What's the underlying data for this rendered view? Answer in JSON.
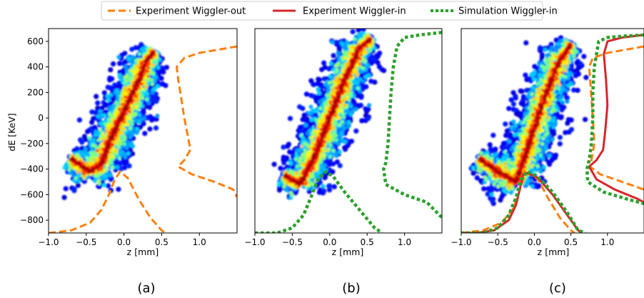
{
  "chart_data": {
    "type": "line",
    "legend": {
      "placement": "top-center",
      "entries": [
        {
          "label": "Experiment Wiggler-out",
          "color": "#ff7f0e",
          "style": "dashed"
        },
        {
          "label": "Experiment Wiggler-in",
          "color": "#d62728",
          "style": "solid"
        },
        {
          "label": "Simulation Wiggler-in",
          "color": "#2ca02c",
          "style": "dotted"
        }
      ]
    },
    "panels": [
      {
        "caption": "(a)",
        "xlabel": "z [mm]",
        "ylabel": "dE [KeV]",
        "xlim": [
          -1.0,
          1.5
        ],
        "ylim": [
          -900,
          700
        ],
        "xticks": [
          "−1.0",
          "−0.5",
          "0.0",
          "0.5",
          "1.0"
        ],
        "yticks": [
          "600",
          "400",
          "200",
          "0",
          "−200",
          "−400",
          "−600",
          "−800"
        ],
        "beam": {
          "colormap": "jet",
          "centerline": [
            [
              -0.7,
              -320
            ],
            [
              -0.45,
              -420
            ],
            [
              -0.3,
              -360
            ],
            [
              -0.2,
              -200
            ],
            [
              0.0,
              50
            ],
            [
              0.2,
              300
            ],
            [
              0.3,
              450
            ],
            [
              0.4,
              520
            ]
          ]
        },
        "series": [
          {
            "name": "Experiment Wiggler-out",
            "role": "current-profile",
            "points": [
              [
                -1.0,
                -900
              ],
              [
                -0.7,
                -880
              ],
              [
                -0.45,
                -820
              ],
              [
                -0.3,
                -720
              ],
              [
                -0.2,
                -600
              ],
              [
                -0.12,
                -480
              ],
              [
                -0.05,
                -420
              ],
              [
                0.05,
                -470
              ],
              [
                0.2,
                -640
              ],
              [
                0.35,
                -780
              ],
              [
                0.5,
                -880
              ],
              [
                0.55,
                -900
              ]
            ]
          },
          {
            "name": "Experiment Wiggler-out",
            "role": "energy-projection",
            "points": [
              [
                1.5,
                560
              ],
              [
                1.3,
                540
              ],
              [
                1.0,
                510
              ],
              [
                0.8,
                470
              ],
              [
                0.7,
                400
              ],
              [
                0.72,
                300
              ],
              [
                0.76,
                150
              ],
              [
                0.8,
                0
              ],
              [
                0.85,
                -150
              ],
              [
                0.88,
                -250
              ],
              [
                0.8,
                -330
              ],
              [
                0.72,
                -380
              ],
              [
                0.9,
                -440
              ],
              [
                1.2,
                -500
              ],
              [
                1.45,
                -560
              ],
              [
                1.5,
                -620
              ]
            ]
          }
        ]
      },
      {
        "caption": "(b)",
        "xlabel": "z [mm]",
        "xlim": [
          -1.0,
          1.5
        ],
        "ylim": [
          -900,
          700
        ],
        "xticks": [
          "−1.0",
          "−0.5",
          "0.0",
          "0.5",
          "1.0"
        ],
        "beam": {
          "colormap": "jet",
          "centerline": [
            [
              -0.6,
              -450
            ],
            [
              -0.4,
              -520
            ],
            [
              -0.2,
              -300
            ],
            [
              0.0,
              0
            ],
            [
              0.2,
              300
            ],
            [
              0.4,
              550
            ],
            [
              0.55,
              620
            ]
          ]
        },
        "series": [
          {
            "name": "Simulation Wiggler-in",
            "role": "current-profile",
            "points": [
              [
                -1.0,
                -900
              ],
              [
                -0.7,
                -900
              ],
              [
                -0.5,
                -860
              ],
              [
                -0.35,
                -760
              ],
              [
                -0.25,
                -620
              ],
              [
                -0.15,
                -470
              ],
              [
                -0.05,
                -420
              ],
              [
                0.05,
                -460
              ],
              [
                0.2,
                -580
              ],
              [
                0.4,
                -720
              ],
              [
                0.6,
                -860
              ],
              [
                0.7,
                -900
              ]
            ]
          },
          {
            "name": "Simulation Wiggler-in",
            "role": "energy-projection",
            "points": [
              [
                1.5,
                670
              ],
              [
                1.2,
                650
              ],
              [
                1.0,
                630
              ],
              [
                0.9,
                560
              ],
              [
                0.85,
                400
              ],
              [
                0.82,
                200
              ],
              [
                0.8,
                0
              ],
              [
                0.78,
                -200
              ],
              [
                0.75,
                -350
              ],
              [
                0.72,
                -400
              ],
              [
                0.75,
                -520
              ],
              [
                1.0,
                -600
              ],
              [
                1.3,
                -660
              ],
              [
                1.5,
                -780
              ]
            ]
          }
        ]
      },
      {
        "caption": "(c)",
        "xlabel": "z [mm]",
        "xlim": [
          -1.0,
          1.5
        ],
        "ylim": [
          -900,
          700
        ],
        "xticks": [
          "−1.0",
          "−0.5",
          "0.0",
          "0.5",
          "1.0"
        ],
        "beam": {
          "colormap": "jet",
          "centerline": [
            [
              -0.75,
              -320
            ],
            [
              -0.5,
              -420
            ],
            [
              -0.25,
              -500
            ],
            [
              -0.1,
              -250
            ],
            [
              0.1,
              100
            ],
            [
              0.3,
              400
            ],
            [
              0.5,
              580
            ]
          ]
        },
        "series": [
          {
            "name": "Experiment Wiggler-out",
            "role": "current-profile",
            "points": [
              [
                -1.0,
                -900
              ],
              [
                -0.7,
                -880
              ],
              [
                -0.45,
                -820
              ],
              [
                -0.3,
                -720
              ],
              [
                -0.22,
                -600
              ],
              [
                -0.15,
                -480
              ],
              [
                -0.08,
                -430
              ],
              [
                0.05,
                -480
              ],
              [
                0.2,
                -640
              ],
              [
                0.35,
                -780
              ],
              [
                0.5,
                -880
              ],
              [
                0.55,
                -900
              ]
            ]
          },
          {
            "name": "Experiment Wiggler-in",
            "role": "current-profile",
            "points": [
              [
                -1.0,
                -900
              ],
              [
                -0.8,
                -900
              ],
              [
                -0.55,
                -880
              ],
              [
                -0.35,
                -800
              ],
              [
                -0.25,
                -680
              ],
              [
                -0.2,
                -560
              ],
              [
                -0.15,
                -440
              ],
              [
                -0.1,
                -430
              ],
              [
                0.05,
                -470
              ],
              [
                0.25,
                -600
              ],
              [
                0.45,
                -760
              ],
              [
                0.6,
                -880
              ],
              [
                0.65,
                -900
              ]
            ]
          },
          {
            "name": "Simulation Wiggler-in",
            "role": "current-profile",
            "points": [
              [
                -1.0,
                -900
              ],
              [
                -0.7,
                -900
              ],
              [
                -0.5,
                -860
              ],
              [
                -0.35,
                -760
              ],
              [
                -0.25,
                -620
              ],
              [
                -0.18,
                -480
              ],
              [
                -0.1,
                -420
              ],
              [
                0.05,
                -460
              ],
              [
                0.25,
                -580
              ],
              [
                0.45,
                -740
              ],
              [
                0.6,
                -880
              ],
              [
                0.7,
                -900
              ]
            ]
          },
          {
            "name": "Experiment Wiggler-out",
            "role": "energy-projection",
            "points": [
              [
                1.5,
                560
              ],
              [
                1.3,
                540
              ],
              [
                1.0,
                510
              ],
              [
                0.8,
                470
              ],
              [
                0.75,
                400
              ],
              [
                0.77,
                250
              ],
              [
                0.8,
                0
              ],
              [
                0.82,
                -200
              ],
              [
                0.78,
                -330
              ],
              [
                0.76,
                -380
              ],
              [
                0.9,
                -440
              ],
              [
                1.2,
                -500
              ],
              [
                1.5,
                -560
              ]
            ]
          },
          {
            "name": "Experiment Wiggler-in",
            "role": "energy-projection",
            "points": [
              [
                1.5,
                650
              ],
              [
                1.2,
                630
              ],
              [
                1.0,
                600
              ],
              [
                0.95,
                500
              ],
              [
                0.98,
                300
              ],
              [
                1.0,
                100
              ],
              [
                0.97,
                -100
              ],
              [
                0.94,
                -250
              ],
              [
                0.85,
                -330
              ],
              [
                0.75,
                -380
              ],
              [
                0.85,
                -480
              ],
              [
                1.1,
                -560
              ],
              [
                1.4,
                -630
              ],
              [
                1.5,
                -660
              ]
            ]
          },
          {
            "name": "Simulation Wiggler-in",
            "role": "energy-projection",
            "points": [
              [
                1.5,
                650
              ],
              [
                1.2,
                640
              ],
              [
                1.0,
                630
              ],
              [
                0.88,
                600
              ],
              [
                0.82,
                400
              ],
              [
                0.8,
                200
              ],
              [
                0.8,
                0
              ],
              [
                0.78,
                -200
              ],
              [
                0.75,
                -330
              ],
              [
                0.72,
                -400
              ],
              [
                0.73,
                -500
              ],
              [
                0.95,
                -580
              ],
              [
                1.3,
                -640
              ],
              [
                1.5,
                -670
              ]
            ]
          }
        ]
      }
    ]
  }
}
